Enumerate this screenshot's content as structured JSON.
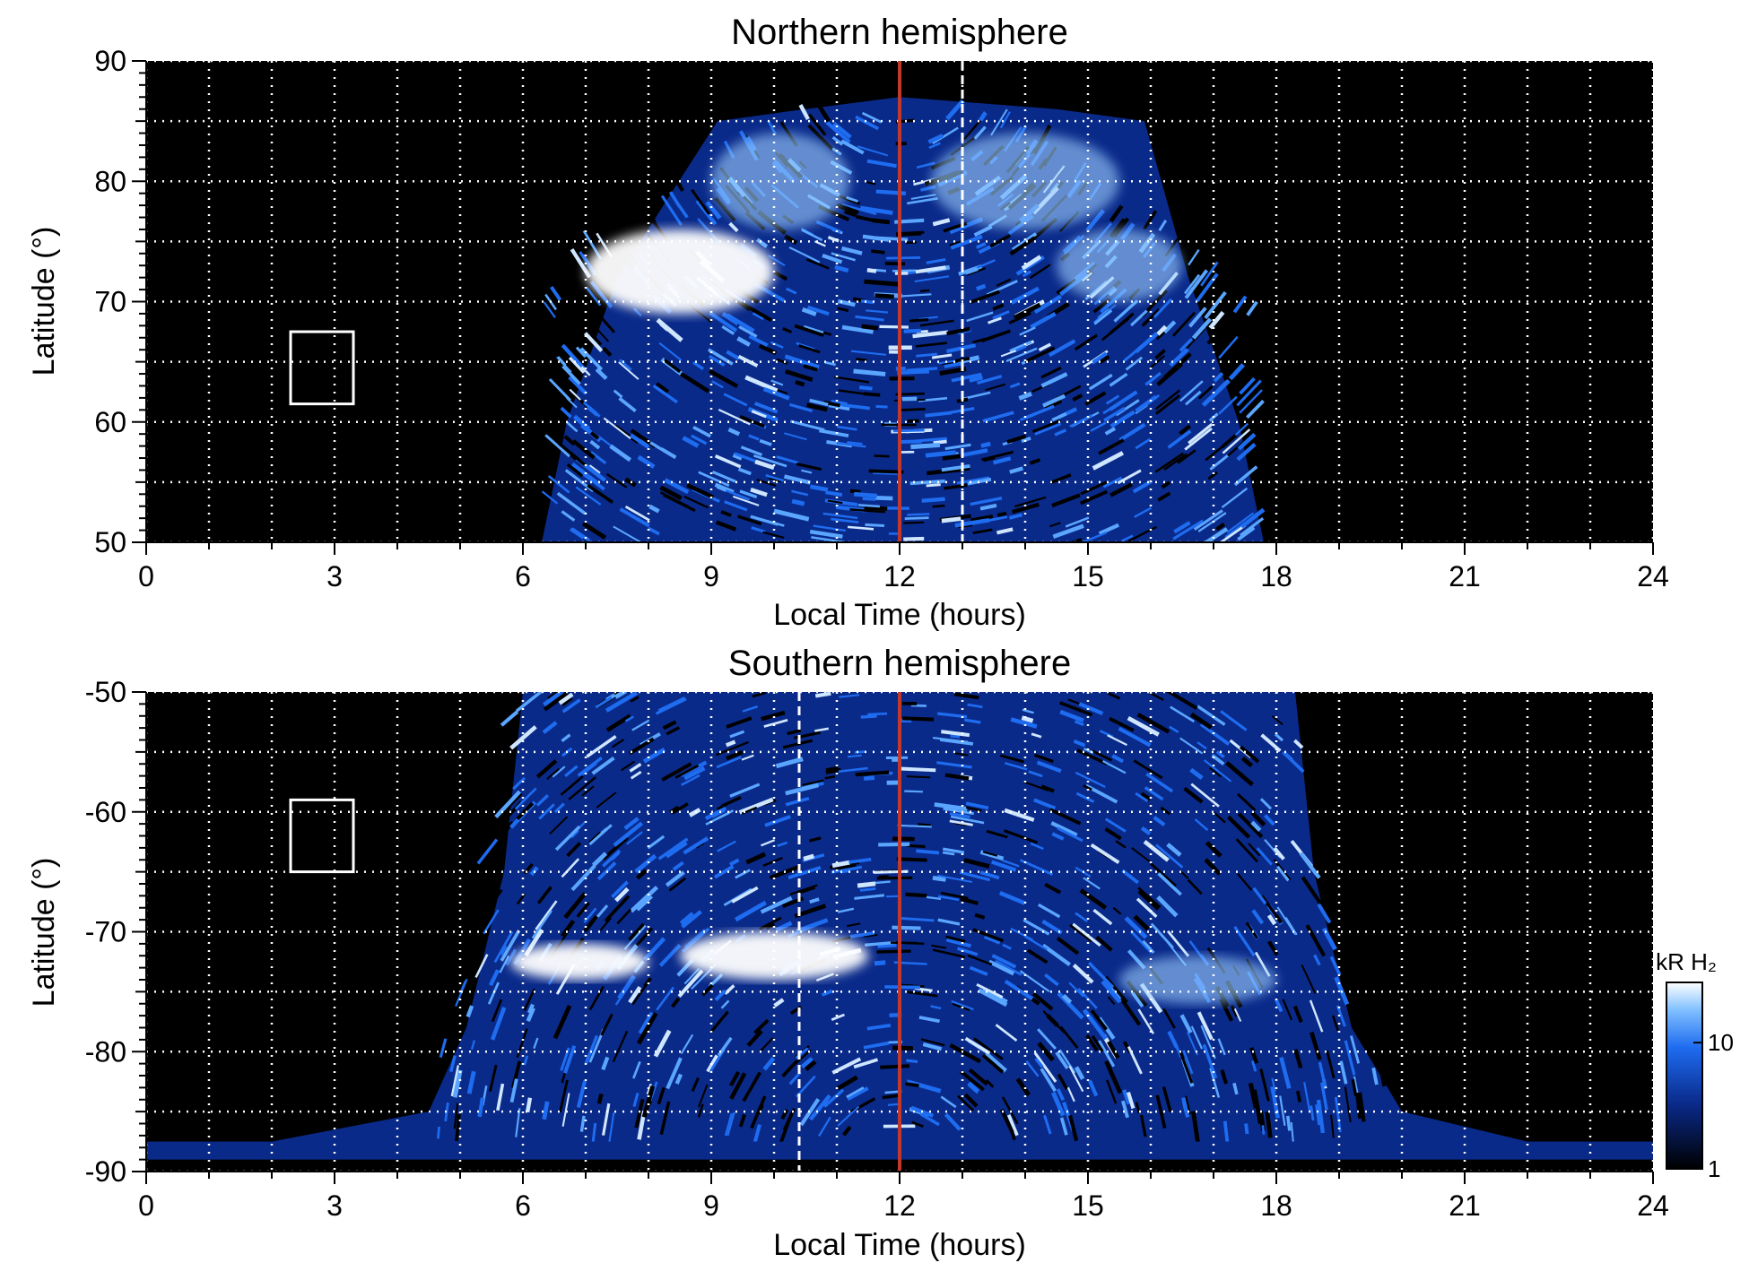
{
  "chart_data": [
    {
      "type": "heatmap",
      "title": "Northern hemisphere",
      "xlabel": "Local Time (hours)",
      "ylabel": "Latitude (°)",
      "xlim": [
        0,
        24
      ],
      "ylim": [
        50,
        90
      ],
      "xticks": [
        0,
        3,
        6,
        9,
        12,
        15,
        18,
        21,
        24
      ],
      "yticks": [
        50,
        60,
        70,
        80,
        90
      ],
      "grid": true,
      "background": "#000000",
      "red_line_local_time": 12,
      "white_dashed_line_local_time": 13,
      "emission_envelope": {
        "lt_range_at_base": [
          6.3,
          17.8
        ],
        "lt_range_at_top": [
          10.5,
          14.5
        ],
        "max_latitude": 87
      },
      "bright_features": [
        {
          "lt_range": [
            7.0,
            10.0
          ],
          "lat_range": [
            69,
            76
          ],
          "level": "high"
        },
        {
          "lt_range": [
            9.0,
            11.2
          ],
          "lat_range": [
            76,
            84
          ],
          "level": "medium"
        },
        {
          "lt_range": [
            12.5,
            15.5
          ],
          "lat_range": [
            76,
            84
          ],
          "level": "medium"
        },
        {
          "lt_range": [
            14.5,
            16.5
          ],
          "lat_range": [
            70,
            76
          ],
          "level": "medium"
        }
      ],
      "box_marker": {
        "lt_range": [
          2.3,
          3.3
        ],
        "lat_range": [
          61.5,
          67.5
        ]
      }
    },
    {
      "type": "heatmap",
      "title": "Southern hemisphere",
      "xlabel": "Local Time (hours)",
      "ylabel": "Latitude (°)",
      "xlim": [
        0,
        24
      ],
      "ylim": [
        -90,
        -50
      ],
      "xticks": [
        0,
        3,
        6,
        9,
        12,
        15,
        18,
        21,
        24
      ],
      "yticks": [
        -90,
        -80,
        -70,
        -60,
        -50
      ],
      "grid": true,
      "background": "#000000",
      "red_line_local_time": 12,
      "white_dashed_line_local_time": 10.4,
      "emission_envelope": {
        "lt_range_at_top": [
          6.0,
          18.3
        ],
        "lt_range_at_base": [
          4.5,
          20.0
        ],
        "min_latitude": -88
      },
      "bright_features": [
        {
          "lt_range": [
            5.8,
            8.0
          ],
          "lat_range": [
            -74,
            -71
          ],
          "level": "high"
        },
        {
          "lt_range": [
            8.5,
            11.5
          ],
          "lat_range": [
            -74,
            -70
          ],
          "level": "high"
        },
        {
          "lt_range": [
            15.5,
            18.0
          ],
          "lat_range": [
            -76,
            -72
          ],
          "level": "medium"
        }
      ],
      "polar_band": {
        "lat_range": [
          -89,
          -87.5
        ],
        "level": "low"
      },
      "box_marker": {
        "lt_range": [
          2.3,
          3.3
        ],
        "lat_range": [
          -65,
          -59
        ]
      },
      "colorbar": {
        "label": "kR H₂",
        "scale": "log",
        "range": [
          1,
          30
        ],
        "ticks": [
          "1",
          "10"
        ]
      }
    }
  ],
  "colors": {
    "plot_background": "#000000",
    "grid": "#ffffff",
    "meridian_line": "#c0392b",
    "emission_low": "#0a2a8a",
    "emission_mid": "#1e6cf0",
    "emission_high": "#ffffff"
  }
}
